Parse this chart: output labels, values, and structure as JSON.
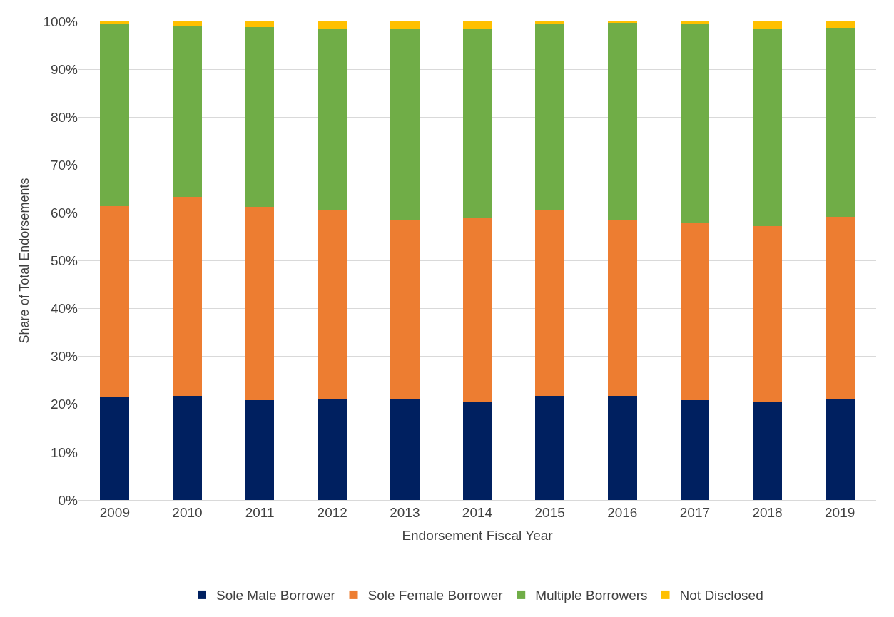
{
  "chart_data": {
    "type": "bar",
    "stacked": true,
    "xlabel": "Endorsement Fiscal Year",
    "ylabel": "Share of Total Endorsements",
    "categories": [
      "2009",
      "2010",
      "2011",
      "2012",
      "2013",
      "2014",
      "2015",
      "2016",
      "2017",
      "2018",
      "2019"
    ],
    "series": [
      {
        "name": "Sole Male Borrower",
        "color": "#002060",
        "values": [
          21.4,
          21.7,
          20.9,
          21.2,
          21.1,
          20.5,
          21.8,
          21.7,
          20.9,
          20.6,
          21.1
        ]
      },
      {
        "name": "Sole Female Borrower",
        "color": "#ed7d31",
        "values": [
          40.0,
          41.6,
          40.3,
          39.3,
          37.4,
          38.4,
          38.7,
          36.8,
          37.1,
          36.7,
          38.1
        ]
      },
      {
        "name": "Multiple Borrowers",
        "color": "#70ad47",
        "values": [
          38.1,
          35.6,
          37.6,
          38.0,
          40.0,
          39.6,
          39.0,
          41.2,
          41.4,
          41.0,
          39.4
        ]
      },
      {
        "name": "Not Disclosed",
        "color": "#ffc000",
        "values": [
          0.5,
          1.1,
          1.2,
          1.5,
          1.5,
          1.5,
          0.5,
          0.3,
          0.6,
          1.7,
          1.4
        ]
      }
    ],
    "ylim": [
      0,
      100
    ],
    "yticks": [
      {
        "value": 0,
        "label": "0%"
      },
      {
        "value": 10,
        "label": "10%"
      },
      {
        "value": 20,
        "label": "20%"
      },
      {
        "value": 30,
        "label": "30%"
      },
      {
        "value": 40,
        "label": "40%"
      },
      {
        "value": 50,
        "label": "50%"
      },
      {
        "value": 60,
        "label": "60%"
      },
      {
        "value": 70,
        "label": "70%"
      },
      {
        "value": 80,
        "label": "80%"
      },
      {
        "value": 90,
        "label": "90%"
      },
      {
        "value": 100,
        "label": "100%"
      }
    ],
    "grid": "y",
    "legend": "bottom"
  }
}
